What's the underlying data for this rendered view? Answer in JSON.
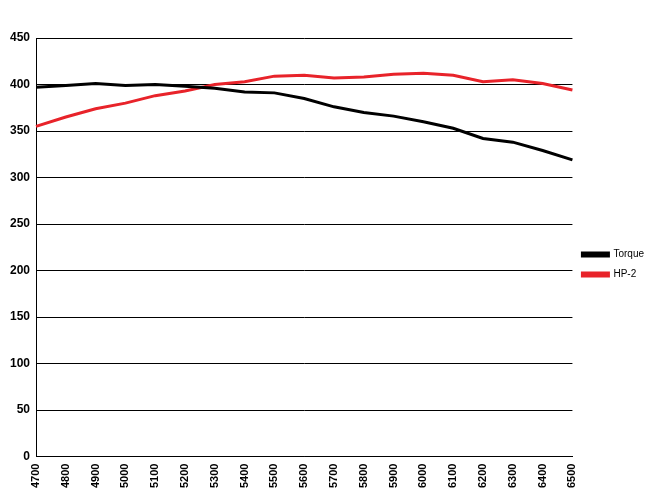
{
  "chart_data": {
    "type": "line",
    "categories": [
      "4700",
      "4800",
      "4900",
      "5000",
      "5100",
      "5200",
      "5300",
      "5400",
      "5500",
      "5600",
      "5700",
      "5800",
      "5900",
      "6000",
      "6100",
      "6200",
      "6300",
      "6400",
      "6500"
    ],
    "series": [
      {
        "name": "Torque",
        "color": "#000000",
        "values": [
          397,
          399,
          401,
          399,
          400,
          398,
          396,
          392,
          391,
          385,
          376,
          370,
          366,
          360,
          353,
          342,
          338,
          329,
          319
        ]
      },
      {
        "name": "HP-2",
        "color": "#e8232a",
        "values": [
          355,
          365,
          374,
          380,
          388,
          393,
          400,
          403,
          409,
          410,
          407,
          408,
          411,
          412,
          410,
          403,
          405,
          401,
          394
        ]
      }
    ],
    "ylim": [
      0,
      450
    ],
    "yticks": [
      0,
      50,
      100,
      150,
      200,
      250,
      300,
      350,
      400,
      450
    ],
    "grid": true,
    "legend": "right"
  }
}
